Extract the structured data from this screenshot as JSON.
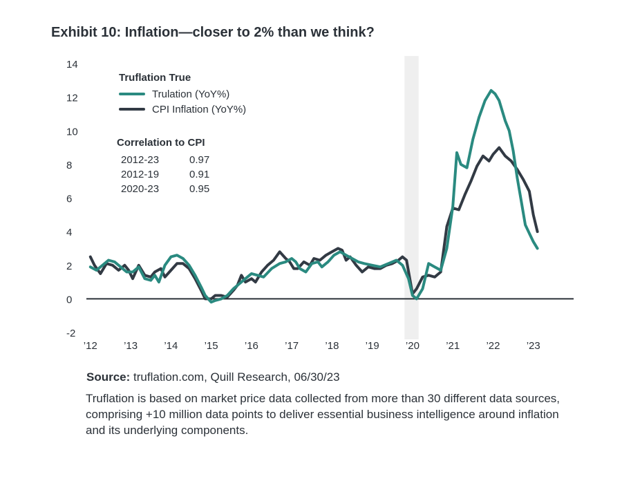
{
  "title": "Exhibit 10: Inflation—closer to 2% than we think?",
  "colors": {
    "truflation": "#2a8a80",
    "cpi": "#323a44",
    "shade": "#efefef",
    "axis": "#2b3138",
    "text": "#2b3138"
  },
  "legend": {
    "heading": "Truflation True",
    "items": [
      {
        "label": "Trulation (YoY%)",
        "color": "#2a8a80"
      },
      {
        "label": "CPI Inflation (YoY%)",
        "color": "#323a44"
      }
    ]
  },
  "correlation": {
    "heading": "Correlation to CPI",
    "rows": [
      {
        "period": "2012-23",
        "value": "0.97"
      },
      {
        "period": "2012-19",
        "value": "0.91"
      },
      {
        "period": "2020-23",
        "value": "0.95"
      }
    ]
  },
  "source": {
    "label": "Source:",
    "text": "truflation.com, Quill Research, 06/30/23"
  },
  "note": "Truflation is based on market price data collected from more than 30 different data sources, comprising +10 million data points to deliver essential business intelligence around inflation and its underlying components.",
  "chart_data": {
    "type": "line",
    "title": "Exhibit 10: Inflation—closer to 2% than we think?",
    "xlabel": "",
    "ylabel": "",
    "xlim": [
      2011.9,
      2024.0
    ],
    "ylim": [
      -2,
      14
    ],
    "y_ticks": [
      -2,
      0,
      2,
      4,
      6,
      8,
      10,
      12,
      14
    ],
    "y_tick_labels": [
      "-2",
      "0",
      "2",
      "4",
      "6",
      "8",
      "10",
      "12",
      "14"
    ],
    "x_ticks": [
      2012,
      2013,
      2014,
      2015,
      2016,
      2017,
      2018,
      2019,
      2020,
      2021,
      2022,
      2023
    ],
    "x_tick_labels": [
      "’12",
      "’13",
      "’14",
      "’15",
      "’16",
      "’17",
      "’18",
      "’19",
      "’20",
      "’21",
      "’22",
      "’23"
    ],
    "shaded_region": [
      2019.8,
      2020.15
    ],
    "grid": false,
    "legend_position": "top-left",
    "series": [
      {
        "name": "Trulation (YoY%)",
        "color": "#2a8a80",
        "x": [
          2012.0,
          2012.15,
          2012.3,
          2012.45,
          2012.6,
          2012.75,
          2012.9,
          2013.05,
          2013.2,
          2013.35,
          2013.5,
          2013.6,
          2013.7,
          2013.85,
          2014.0,
          2014.15,
          2014.3,
          2014.45,
          2014.6,
          2014.75,
          2014.85,
          2015.0,
          2015.1,
          2015.25,
          2015.4,
          2015.55,
          2015.7,
          2015.85,
          2016.0,
          2016.15,
          2016.3,
          2016.5,
          2016.7,
          2016.85,
          2017.0,
          2017.1,
          2017.2,
          2017.35,
          2017.5,
          2017.65,
          2017.75,
          2017.9,
          2018.05,
          2018.2,
          2018.35,
          2018.5,
          2018.65,
          2018.8,
          2019.0,
          2019.2,
          2019.4,
          2019.6,
          2019.75,
          2019.9,
          2020.0,
          2020.1,
          2020.25,
          2020.4,
          2020.55,
          2020.7,
          2020.85,
          2021.0,
          2021.1,
          2021.2,
          2021.35,
          2021.5,
          2021.65,
          2021.8,
          2021.95,
          2022.05,
          2022.15,
          2022.3,
          2022.4,
          2022.5,
          2022.6,
          2022.7,
          2022.8,
          2022.9,
          2023.0,
          2023.1
        ],
        "values": [
          1.9,
          1.7,
          2.0,
          2.3,
          2.2,
          1.9,
          1.6,
          1.6,
          1.9,
          1.2,
          1.1,
          1.4,
          1.0,
          2.0,
          2.5,
          2.6,
          2.4,
          2.0,
          1.4,
          0.7,
          0.2,
          -0.2,
          -0.1,
          0.0,
          0.2,
          0.6,
          0.9,
          1.2,
          1.5,
          1.4,
          1.3,
          1.8,
          2.1,
          2.2,
          2.4,
          2.2,
          1.8,
          1.6,
          2.1,
          2.2,
          1.9,
          2.2,
          2.6,
          2.8,
          2.6,
          2.4,
          2.2,
          2.1,
          2.0,
          1.9,
          2.1,
          2.3,
          2.0,
          1.2,
          0.2,
          0.0,
          0.6,
          2.1,
          1.9,
          1.7,
          3.0,
          5.5,
          8.7,
          8.0,
          7.8,
          9.5,
          10.8,
          11.8,
          12.4,
          12.2,
          11.8,
          10.6,
          10.0,
          8.8,
          7.2,
          5.8,
          4.4,
          3.9,
          3.4,
          3.0
        ]
      },
      {
        "name": "CPI Inflation (YoY%)",
        "color": "#323a44",
        "x": [
          2012.0,
          2012.1,
          2012.25,
          2012.4,
          2012.55,
          2012.7,
          2012.85,
          2012.95,
          2013.05,
          2013.2,
          2013.35,
          2013.5,
          2013.6,
          2013.75,
          2013.85,
          2014.0,
          2014.15,
          2014.3,
          2014.45,
          2014.6,
          2014.75,
          2014.85,
          2015.0,
          2015.1,
          2015.25,
          2015.4,
          2015.55,
          2015.65,
          2015.75,
          2015.85,
          2016.0,
          2016.1,
          2016.25,
          2016.4,
          2016.55,
          2016.7,
          2016.85,
          2016.95,
          2017.05,
          2017.15,
          2017.3,
          2017.45,
          2017.55,
          2017.7,
          2017.85,
          2018.0,
          2018.15,
          2018.25,
          2018.35,
          2018.45,
          2018.6,
          2018.75,
          2018.9,
          2019.05,
          2019.2,
          2019.35,
          2019.5,
          2019.65,
          2019.75,
          2019.85,
          2020.0,
          2020.1,
          2020.25,
          2020.4,
          2020.55,
          2020.7,
          2020.85,
          2021.0,
          2021.15,
          2021.3,
          2021.45,
          2021.6,
          2021.75,
          2021.9,
          2022.0,
          2022.15,
          2022.3,
          2022.45,
          2022.6,
          2022.75,
          2022.9,
          2023.0,
          2023.1
        ],
        "values": [
          2.5,
          2.0,
          1.5,
          2.1,
          2.0,
          1.7,
          2.0,
          1.7,
          1.2,
          2.0,
          1.4,
          1.3,
          1.6,
          1.8,
          1.3,
          1.7,
          2.1,
          2.1,
          1.8,
          1.2,
          0.5,
          0.0,
          0.0,
          0.2,
          0.2,
          0.1,
          0.5,
          0.8,
          1.4,
          1.0,
          1.2,
          1.0,
          1.6,
          2.0,
          2.3,
          2.8,
          2.4,
          2.2,
          1.8,
          1.8,
          2.2,
          2.0,
          2.4,
          2.3,
          2.6,
          2.8,
          3.0,
          2.9,
          2.3,
          2.5,
          2.0,
          1.6,
          1.9,
          1.8,
          1.8,
          2.0,
          2.1,
          2.3,
          2.5,
          2.3,
          0.3,
          0.6,
          1.3,
          1.4,
          1.3,
          1.6,
          4.3,
          5.4,
          5.3,
          6.2,
          7.0,
          7.9,
          8.5,
          8.2,
          8.6,
          9.0,
          8.5,
          8.2,
          7.7,
          7.1,
          6.4,
          5.0,
          4.0
        ]
      }
    ]
  }
}
